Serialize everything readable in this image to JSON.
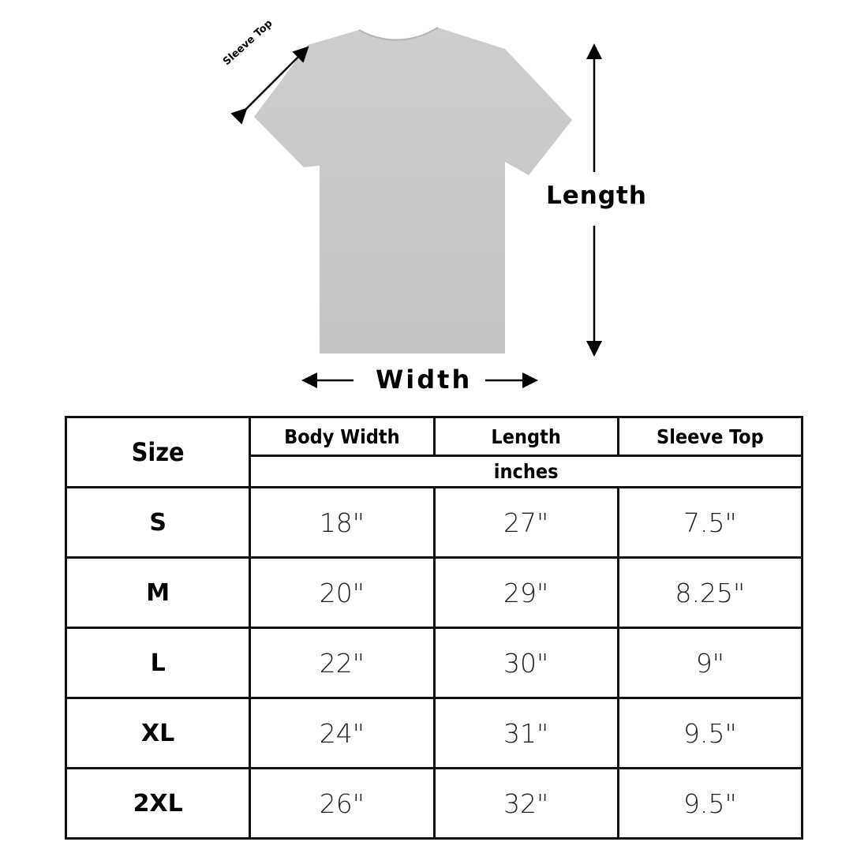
{
  "diagram": {
    "sleeve_label": "Sleeve Top",
    "length_label": "Length",
    "width_label": "Width",
    "shirt_color": "#c9c9c9"
  },
  "table": {
    "size_header": "Size",
    "columns": [
      "Body Width",
      "Length",
      "Sleeve Top"
    ],
    "unit": "inches",
    "rows": [
      {
        "size": "S",
        "body_width": "18\"",
        "length": "27\"",
        "sleeve_top": "7.5\""
      },
      {
        "size": "M",
        "body_width": "20\"",
        "length": "29\"",
        "sleeve_top": "8.25\""
      },
      {
        "size": "L",
        "body_width": "22\"",
        "length": "30\"",
        "sleeve_top": "9\""
      },
      {
        "size": "XL",
        "body_width": "24\"",
        "length": "31\"",
        "sleeve_top": "9.5\""
      },
      {
        "size": "2XL",
        "body_width": "26\"",
        "length": "32\"",
        "sleeve_top": "9.5\""
      }
    ]
  }
}
